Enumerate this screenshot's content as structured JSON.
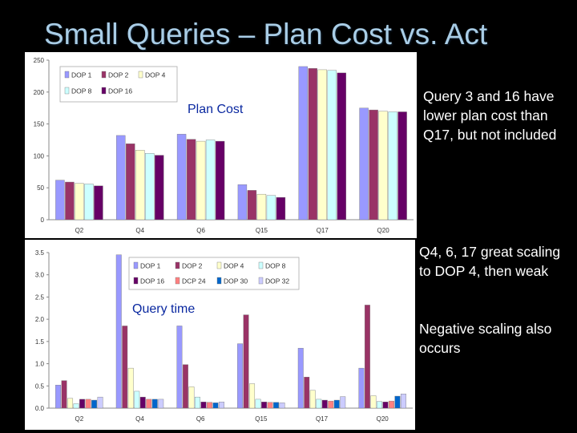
{
  "slide": {
    "title": "Small Queries – Plan Cost vs. Act",
    "bullets": [
      "Query 3 and 16 have lower plan cost than Q17, but not included",
      "Q4, 6, 17 great scaling to DOP 4, then weak",
      "Negative scaling also occurs"
    ]
  },
  "chart_data": [
    {
      "type": "bar",
      "title": "Plan Cost",
      "categories": [
        "Q2",
        "Q4",
        "Q6",
        "Q15",
        "Q17",
        "Q20"
      ],
      "ylim": [
        0,
        250
      ],
      "yticks": [
        "0",
        "50",
        "100",
        "150",
        "200",
        "250"
      ],
      "ytick_values": [
        0,
        50,
        100,
        150,
        200,
        250
      ],
      "grid": false,
      "legend_placement": "top-left",
      "series": [
        {
          "name": "DOP 1",
          "color": "#9999ff",
          "values": [
            62,
            132,
            134,
            55,
            240,
            175
          ]
        },
        {
          "name": "DOP 2",
          "color": "#993366",
          "values": [
            59,
            119,
            126,
            46,
            237,
            172
          ]
        },
        {
          "name": "DOP 4",
          "color": "#ffffcc",
          "values": [
            57,
            109,
            123,
            40,
            235,
            170
          ]
        },
        {
          "name": "DOP 8",
          "color": "#ccffff",
          "values": [
            56,
            104,
            125,
            38,
            234,
            169
          ]
        },
        {
          "name": "DOP 16",
          "color": "#660066",
          "values": [
            53,
            101,
            123,
            35,
            230,
            169
          ]
        }
      ]
    },
    {
      "type": "bar",
      "title": "Query time",
      "categories": [
        "Q2",
        "Q4",
        "Q6",
        "Q15",
        "Q17",
        "Q20"
      ],
      "ylim": [
        0,
        3.5
      ],
      "yticks": [
        "0.0",
        "0.5",
        "1.0",
        "1.5",
        "2.0",
        "2.5",
        "3.0",
        "3.5"
      ],
      "ytick_values": [
        0,
        0.5,
        1.0,
        1.5,
        2.0,
        2.5,
        3.0,
        3.5
      ],
      "grid": false,
      "legend_placement": "top-right",
      "series": [
        {
          "name": "DOP 1",
          "color": "#9999ff",
          "values": [
            0.52,
            3.45,
            1.85,
            1.45,
            1.35,
            0.9
          ]
        },
        {
          "name": "DOP 2",
          "color": "#993366",
          "values": [
            0.62,
            1.85,
            0.98,
            2.1,
            0.7,
            2.32
          ]
        },
        {
          "name": "DOP 4",
          "color": "#ffffcc",
          "values": [
            0.22,
            0.9,
            0.48,
            0.55,
            0.4,
            0.28
          ]
        },
        {
          "name": "DOP 8",
          "color": "#ccffff",
          "values": [
            0.1,
            0.38,
            0.25,
            0.2,
            0.2,
            0.15
          ]
        },
        {
          "name": "DOP 16",
          "color": "#660066",
          "values": [
            0.2,
            0.25,
            0.14,
            0.14,
            0.18,
            0.14
          ]
        },
        {
          "name": "DCP 24",
          "color": "#ff8080",
          "values": [
            0.2,
            0.2,
            0.13,
            0.13,
            0.16,
            0.16
          ]
        },
        {
          "name": "DOP 30",
          "color": "#0066cc",
          "values": [
            0.18,
            0.2,
            0.12,
            0.13,
            0.18,
            0.27
          ]
        },
        {
          "name": "DOP 32",
          "color": "#ccccff",
          "values": [
            0.25,
            0.2,
            0.14,
            0.12,
            0.26,
            0.32
          ]
        }
      ]
    }
  ]
}
